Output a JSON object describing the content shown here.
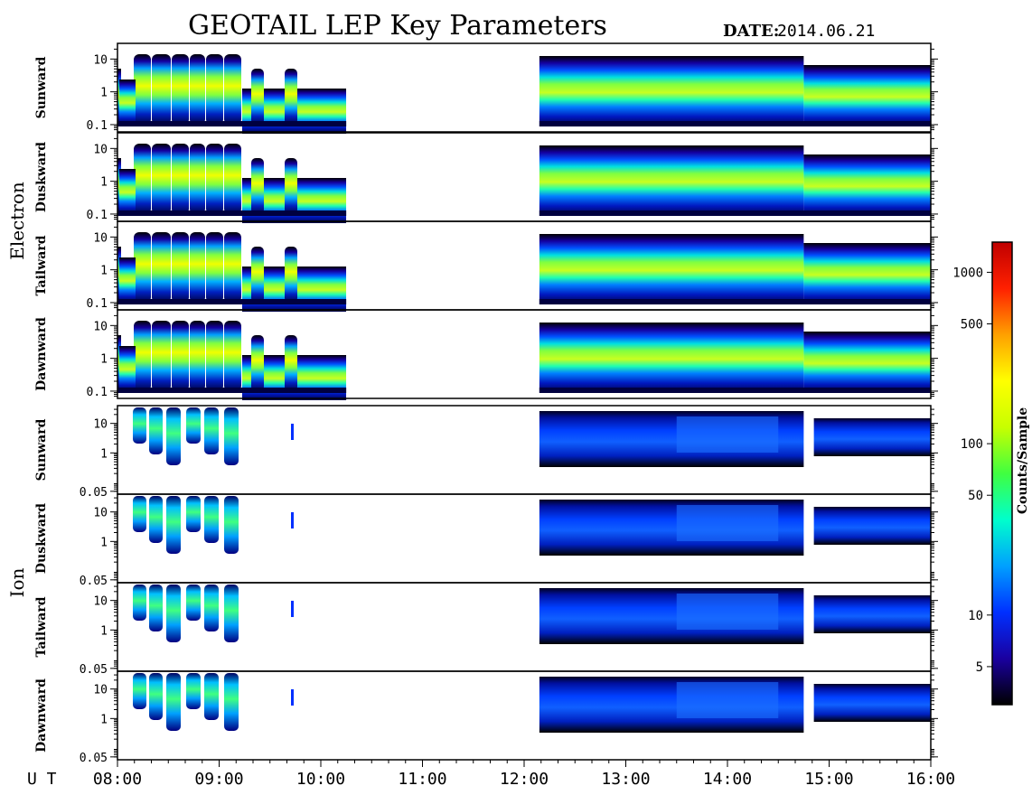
{
  "chart_data": {
    "type": "heatmap",
    "title": "GEOTAIL LEP Key Parameters",
    "date_label": "DATE:",
    "date_value": "2014.06.21",
    "x_axis": {
      "label": "U T",
      "ticks": [
        "08:00",
        "09:00",
        "10:00",
        "11:00",
        "12:00",
        "13:00",
        "14:00",
        "15:00",
        "16:00"
      ],
      "range_hours": [
        8,
        16
      ]
    },
    "data_gaps_hours": [
      [
        10.25,
        12.15
      ]
    ],
    "colorbar": {
      "label": "Counts/Sample",
      "scale": "log",
      "range": [
        3,
        1500
      ],
      "ticks": [
        "1000",
        "500",
        "100",
        "50",
        "10",
        "5"
      ],
      "tick_values": [
        1000,
        500,
        100,
        50,
        10,
        5
      ],
      "colors": [
        "#000000",
        "#1a00a0",
        "#0030ff",
        "#00a0ff",
        "#00ffcc",
        "#40ff40",
        "#c8ff00",
        "#ffff00",
        "#ffa000",
        "#ff2000",
        "#c00000"
      ]
    },
    "groups": [
      {
        "name": "Electron",
        "y_scale": "log",
        "y_ticks": [
          "10",
          "1",
          "0.1"
        ],
        "y_tick_values": [
          10,
          1,
          0.1
        ],
        "y_range": [
          0.06,
          30
        ],
        "panels": [
          "Sunward",
          "Duskward",
          "Tailward",
          "Dawnward"
        ]
      },
      {
        "name": "Ion",
        "y_scale": "log",
        "y_ticks": [
          "10",
          "1",
          "0.05"
        ],
        "y_tick_values": [
          10,
          1,
          0.05
        ],
        "y_range": [
          0.04,
          40
        ],
        "panels": [
          "Sunward",
          "Duskward",
          "Tailward",
          "Dawnward"
        ]
      }
    ]
  }
}
